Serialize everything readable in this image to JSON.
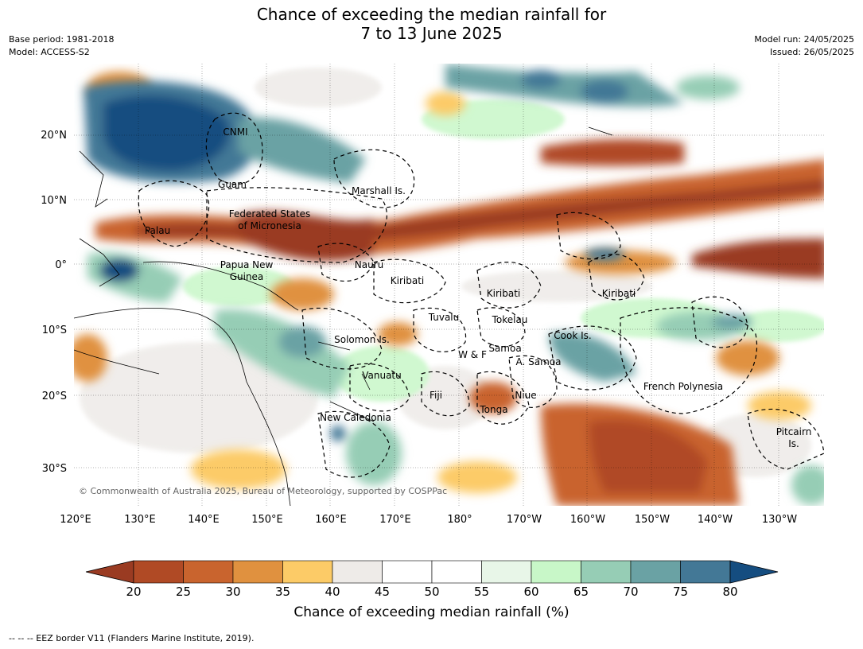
{
  "title_line1": "Chance of exceeding the median rainfall for",
  "title_line2": "7 to 13 June 2025",
  "base_period": "Base period: 1981-2018",
  "model": "Model: ACCESS-S2",
  "model_run": "Model run: 24/05/2025",
  "issued": "Issued: 26/05/2025",
  "copyright": "© Commonwealth of Australia 2025, Bureau of Meteorology, supported by COSPPac",
  "eez_note": "-- -- -- EEZ border V11 (Flanders Marine Institute, 2019).",
  "lat_labels": [
    "20°N",
    "10°N",
    "0°",
    "10°S",
    "20°S",
    "30°S"
  ],
  "lon_labels": [
    "120°E",
    "130°E",
    "140°E",
    "150°E",
    "160°E",
    "170°E",
    "180°",
    "170°W",
    "160°W",
    "150°W",
    "140°W",
    "130°W"
  ],
  "place_labels": [
    {
      "text": "CNMI"
    },
    {
      "text": "Guam"
    },
    {
      "text": "Marshall Is."
    },
    {
      "text": "Federated States"
    },
    {
      "text": "of Micronesia"
    },
    {
      "text": "Palau"
    },
    {
      "text": "Papua New"
    },
    {
      "text": "Guinea"
    },
    {
      "text": "Nauru"
    },
    {
      "text": "Kiribati"
    },
    {
      "text": "Kiribati"
    },
    {
      "text": "Kiribati"
    },
    {
      "text": "Tuvalu"
    },
    {
      "text": "Tokelau"
    },
    {
      "text": "Solomon Is."
    },
    {
      "text": "W & F"
    },
    {
      "text": "Samoa"
    },
    {
      "text": "A. Samoa"
    },
    {
      "text": "Cook Is."
    },
    {
      "text": "Vanuatu"
    },
    {
      "text": "Fiji"
    },
    {
      "text": "Niue"
    },
    {
      "text": "Tonga"
    },
    {
      "text": "French Polynesia"
    },
    {
      "text": "New Caledonia"
    },
    {
      "text": "Pitcairn"
    },
    {
      "text": "Is."
    }
  ],
  "colorbar": {
    "title": "Chance of exceeding median rainfall (%)",
    "ticks": [
      "20",
      "25",
      "30",
      "35",
      "40",
      "45",
      "50",
      "55",
      "60",
      "65",
      "70",
      "75",
      "80"
    ],
    "colors": [
      "#9a3b22",
      "#b04a25",
      "#c9642e",
      "#e0913f",
      "#fccb67",
      "#eeebe8",
      "#ffffff",
      "#ffffff",
      "#e8f6e8",
      "#c8f7c8",
      "#96cdb5",
      "#6aa2a4",
      "#437896",
      "#154d80"
    ]
  }
}
